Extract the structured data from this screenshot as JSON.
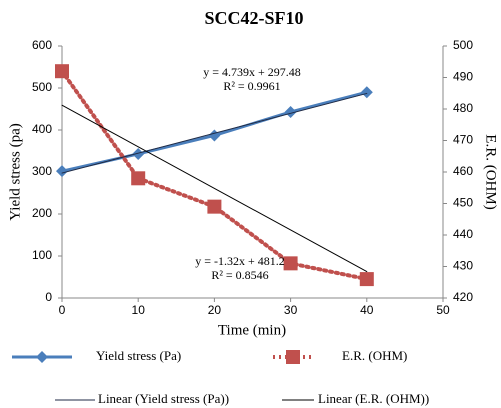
{
  "chart_data": {
    "type": "line",
    "title": "SCC42-SF10",
    "x_label": "Time (min)",
    "y_label": "Yield stress (pa)",
    "y2_label": "E.R. (OHM)",
    "x": [
      0,
      10,
      20,
      30,
      40
    ],
    "xlim": [
      0,
      50
    ],
    "xticks": [
      0,
      10,
      20,
      30,
      40,
      50
    ],
    "ylim": [
      0,
      600
    ],
    "yticks": [
      0,
      100,
      200,
      300,
      400,
      500,
      600
    ],
    "y2lim": [
      420,
      500
    ],
    "y2ticks": [
      420,
      430,
      440,
      450,
      460,
      470,
      480,
      490,
      500
    ],
    "series": [
      {
        "name": "Yield stress (Pa)",
        "color": "#4a7ebb",
        "marker": "diamond",
        "dash": "solid",
        "values": [
          302,
          343,
          387,
          443,
          490
        ]
      },
      {
        "name": "E.R. (OHM)",
        "color": "#c0504d",
        "marker": "square",
        "dash": "dotted",
        "axis": "y2",
        "values": [
          492,
          458,
          449,
          431,
          426
        ]
      },
      {
        "name": "Linear (Yield stress (Pa))",
        "color": "#1f2a44",
        "dash": "solid",
        "x": [
          0,
          40
        ],
        "values": [
          297.48,
          487.04
        ]
      },
      {
        "name": "Linear (E.R. (OHM))",
        "color": "#000000",
        "dash": "solid",
        "axis": "y2",
        "x": [
          0,
          40
        ],
        "values": [
          481.2,
          428.4
        ]
      }
    ],
    "annotations": [
      [
        "y = 4.739x + 297.48",
        "R² = 0.9961"
      ],
      [
        "y = -1.32x + 481.2",
        "R² = 0.8546"
      ]
    ]
  }
}
